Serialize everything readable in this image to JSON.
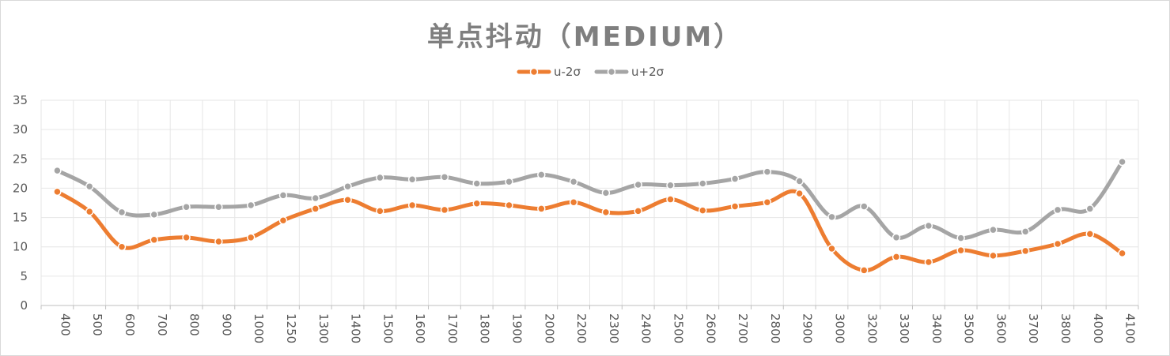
{
  "chart_data": {
    "type": "line",
    "title": "单点抖动（MEDIUM）",
    "xlabel": "",
    "ylabel": "",
    "categories": [
      "400",
      "500",
      "600",
      "700",
      "800",
      "900",
      "1000",
      "1250",
      "1300",
      "1400",
      "1500",
      "1600",
      "1700",
      "1800",
      "1900",
      "2000",
      "2200",
      "2300",
      "2400",
      "2500",
      "2600",
      "2700",
      "2800",
      "2900",
      "3000",
      "3200",
      "3300",
      "3400",
      "3500",
      "3600",
      "3700",
      "3800",
      "4000",
      "4100"
    ],
    "ylim": [
      0,
      35
    ],
    "yticks": [
      0,
      5,
      10,
      15,
      20,
      25,
      30,
      35
    ],
    "grid": true,
    "legend_position": "top",
    "smooth": true,
    "series": [
      {
        "name": "u-2σ",
        "color": "#ed7d31",
        "values": [
          19.4,
          16.0,
          10.0,
          11.2,
          11.6,
          10.9,
          11.6,
          14.5,
          16.5,
          18.0,
          16.1,
          17.1,
          16.3,
          17.4,
          17.1,
          16.5,
          17.6,
          15.9,
          16.1,
          18.1,
          16.2,
          16.9,
          17.6,
          19.1,
          9.7,
          6.0,
          8.3,
          7.4,
          9.4,
          8.5,
          9.3,
          10.5,
          12.2,
          8.9
        ]
      },
      {
        "name": "u+2σ",
        "color": "#a5a5a5",
        "values": [
          23.0,
          20.3,
          15.9,
          15.5,
          16.8,
          16.8,
          17.1,
          18.8,
          18.3,
          20.3,
          21.8,
          21.5,
          21.9,
          20.8,
          21.1,
          22.3,
          21.1,
          19.2,
          20.6,
          20.5,
          20.8,
          21.6,
          22.8,
          21.2,
          15.1,
          16.9,
          11.6,
          13.6,
          11.5,
          12.9,
          12.6,
          16.3,
          16.5,
          24.5
        ]
      }
    ]
  }
}
